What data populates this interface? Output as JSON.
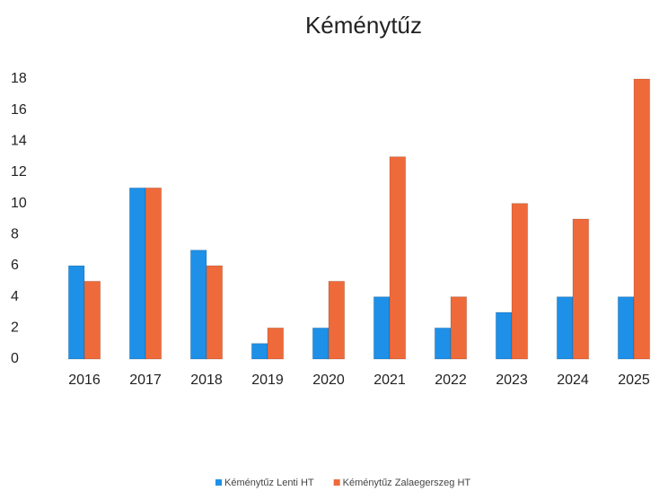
{
  "chart_data": {
    "type": "bar",
    "title": "Kéménytűz",
    "categories": [
      "2016",
      "2017",
      "2018",
      "2019",
      "2020",
      "2021",
      "2022",
      "2023",
      "2024",
      "2025"
    ],
    "series": [
      {
        "name": "Kéménytűz Lenti HT",
        "color": "#1e90e8",
        "values": [
          6,
          11,
          7,
          1,
          2,
          4,
          2,
          3,
          4,
          4
        ]
      },
      {
        "name": "Kéménytűz Zalaegerszeg HT",
        "color": "#ef6a3a",
        "values": [
          5,
          11,
          6,
          2,
          5,
          13,
          4,
          10,
          9,
          18
        ]
      }
    ],
    "ylim": [
      0,
      18
    ],
    "yticks": [
      0,
      2,
      4,
      6,
      8,
      10,
      12,
      14,
      16,
      18
    ],
    "grid": false
  }
}
